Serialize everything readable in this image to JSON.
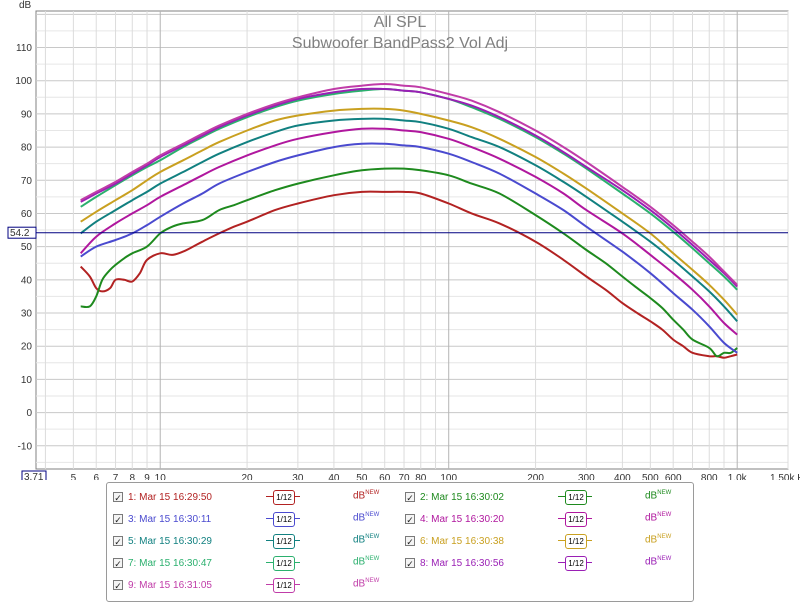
{
  "chart_data": {
    "type": "line",
    "title": "All SPL",
    "subtitle": "Subwoofer BandPass2 Vol Adj",
    "ylabel": "dB",
    "xlabel": "Hz",
    "x_scale": "log",
    "xlim": [
      3.71,
      1500
    ],
    "ylim": [
      -17,
      121
    ],
    "x_ticks": [
      5,
      6,
      7,
      8,
      9,
      10,
      20,
      30,
      40,
      50,
      60,
      70,
      80,
      100,
      200,
      300,
      400,
      500,
      600,
      800,
      1000,
      1500
    ],
    "x_tick_labels": [
      "5",
      "6",
      "7",
      "8",
      "9",
      "10",
      "20",
      "30",
      "40",
      "50",
      "60",
      "70",
      "80",
      "100",
      "200",
      "300",
      "400",
      "500",
      "600",
      "800",
      "1.0k",
      "1.50k Hz"
    ],
    "y_ticks": [
      -10,
      0,
      10,
      20,
      30,
      40,
      50,
      60,
      70,
      80,
      90,
      100,
      110
    ],
    "x_axis_start_label": "3.71",
    "cursor_y": 54.2,
    "cursor_label": "54.2",
    "grid": true,
    "series": [
      {
        "name": "1: Mar 15 16:29:50",
        "color": "#b22222",
        "x": [
          5.3,
          5.7,
          6,
          6.3,
          6.7,
          7,
          7.5,
          8,
          8.5,
          9,
          10,
          11,
          12,
          13,
          14,
          16,
          18,
          20,
          25,
          30,
          40,
          50,
          60,
          70,
          80,
          100,
          120,
          150,
          200,
          250,
          300,
          350,
          400,
          450,
          500,
          550,
          600,
          650,
          700,
          800,
          850,
          900,
          950,
          1000
        ],
        "y": [
          44,
          41,
          37.5,
          36.5,
          37.5,
          40,
          40,
          39.5,
          42,
          46,
          48,
          47.5,
          48.5,
          50,
          51.5,
          54,
          56,
          57.5,
          61,
          63,
          65.5,
          66.5,
          66.5,
          66.5,
          66,
          63,
          60,
          57,
          51.5,
          46,
          41,
          37,
          33,
          30,
          27.5,
          25,
          22,
          20,
          18,
          17,
          17,
          16.5,
          17,
          17.5
        ]
      },
      {
        "name": "2: Mar 15 16:30:02",
        "color": "#1e8a1e",
        "x": [
          5.3,
          5.7,
          6,
          6.3,
          6.7,
          7,
          7.5,
          8,
          9,
          10,
          11,
          12,
          14,
          16,
          18,
          20,
          25,
          30,
          40,
          50,
          60,
          70,
          80,
          100,
          120,
          150,
          200,
          250,
          300,
          350,
          400,
          450,
          500,
          550,
          600,
          650,
          700,
          800,
          850,
          900,
          950,
          1000
        ],
        "y": [
          32,
          32,
          35,
          40,
          43,
          44.5,
          46.5,
          48,
          50,
          54,
          56,
          57,
          58,
          61,
          62.5,
          64,
          67,
          69,
          71.5,
          73,
          73.5,
          73.5,
          73,
          71.5,
          69,
          66,
          59.5,
          54,
          49,
          45,
          41,
          37.5,
          34.5,
          31.5,
          28,
          25,
          22,
          19.5,
          17,
          18,
          18,
          19.5
        ]
      },
      {
        "name": "3: Mar 15 16:30:11",
        "color": "#4a4acf",
        "x": [
          5.3,
          6,
          7,
          8,
          9,
          10,
          12,
          14,
          16,
          20,
          25,
          30,
          40,
          50,
          60,
          70,
          80,
          100,
          120,
          150,
          200,
          250,
          300,
          400,
          500,
          600,
          700,
          800,
          900,
          1000
        ],
        "y": [
          47,
          50,
          52,
          54,
          56.5,
          59,
          63,
          66,
          69,
          72.5,
          75.5,
          77.5,
          80,
          81,
          81,
          80.5,
          80,
          78,
          75.5,
          72,
          66,
          61,
          56,
          48.5,
          42,
          36,
          31,
          26,
          21,
          18
        ]
      },
      {
        "name": "4: Mar 15 16:30:20",
        "color": "#b0179e",
        "x": [
          5.3,
          6,
          7,
          8,
          9,
          10,
          12,
          14,
          16,
          20,
          25,
          30,
          40,
          50,
          60,
          70,
          80,
          100,
          120,
          150,
          200,
          250,
          300,
          400,
          500,
          600,
          700,
          800,
          900,
          1000
        ],
        "y": [
          48,
          53,
          57,
          60,
          62.5,
          65,
          68.5,
          71.5,
          74,
          77.5,
          80.5,
          82.5,
          84.5,
          85.5,
          85.5,
          85,
          84.5,
          82.5,
          80,
          76.5,
          71,
          66,
          61,
          54,
          47.5,
          42,
          37,
          32,
          27,
          23.5
        ]
      },
      {
        "name": "5: Mar 15 16:30:29",
        "color": "#118080",
        "x": [
          5.3,
          6,
          7,
          8,
          9,
          10,
          12,
          14,
          16,
          20,
          25,
          30,
          40,
          50,
          60,
          70,
          80,
          100,
          120,
          150,
          200,
          250,
          300,
          400,
          500,
          600,
          700,
          800,
          900,
          1000
        ],
        "y": [
          54,
          57.5,
          61,
          64,
          66.5,
          69,
          72.5,
          75.5,
          78,
          81.5,
          84.5,
          86.5,
          88,
          88.5,
          88.5,
          88,
          87.5,
          85.5,
          83,
          80,
          74.5,
          69.5,
          65,
          57.5,
          51.5,
          46,
          41,
          36.5,
          32,
          27.5
        ]
      },
      {
        "name": "6: Mar 15 16:30:38",
        "color": "#c9a020",
        "x": [
          5.3,
          6,
          7,
          8,
          9,
          10,
          12,
          14,
          16,
          20,
          25,
          30,
          40,
          50,
          60,
          70,
          80,
          100,
          120,
          150,
          200,
          250,
          300,
          400,
          500,
          600,
          700,
          800,
          900,
          1000
        ],
        "y": [
          57.5,
          60.5,
          64,
          67,
          70,
          72.5,
          76,
          79,
          81.5,
          85,
          88,
          89.5,
          91,
          91.5,
          91.5,
          91,
          90,
          88,
          86,
          82.5,
          77,
          72,
          67.5,
          60,
          54,
          48,
          43,
          38.5,
          34,
          29.5
        ]
      },
      {
        "name": "7: Mar 15 16:30:47",
        "color": "#2bb06e",
        "x": [
          5.3,
          6,
          7,
          8,
          9,
          10,
          12,
          14,
          16,
          20,
          25,
          30,
          40,
          50,
          60,
          70,
          80,
          100,
          120,
          150,
          200,
          250,
          300,
          400,
          500,
          600,
          700,
          800,
          900,
          1000
        ],
        "y": [
          62,
          65,
          68.5,
          71.5,
          74,
          76,
          80,
          83,
          85.5,
          89,
          92,
          94,
          96,
          97,
          97.5,
          97,
          96.5,
          94.5,
          92,
          88.5,
          83,
          78,
          73.5,
          66,
          60,
          54.5,
          49.5,
          45,
          41,
          37
        ]
      },
      {
        "name": "8: Mar 15 16:30:56",
        "color": "#9a1fb5",
        "x": [
          5.3,
          6,
          7,
          8,
          9,
          10,
          12,
          14,
          16,
          20,
          25,
          30,
          40,
          50,
          60,
          70,
          80,
          100,
          120,
          150,
          200,
          250,
          300,
          400,
          500,
          600,
          700,
          800,
          900,
          1000
        ],
        "y": [
          63.5,
          66,
          69,
          72,
          74.5,
          77,
          80.5,
          83.5,
          86,
          89.5,
          92.5,
          94.5,
          96.5,
          97.5,
          97.5,
          97,
          96.5,
          94.5,
          92.5,
          89,
          83.5,
          78.5,
          74,
          67,
          61,
          55.5,
          50.5,
          46,
          42,
          38
        ]
      },
      {
        "name": "9: Mar 15 16:31:05",
        "color": "#c03ca8",
        "x": [
          5.3,
          6,
          7,
          8,
          9,
          10,
          12,
          14,
          16,
          20,
          25,
          30,
          40,
          50,
          60,
          70,
          80,
          100,
          120,
          150,
          200,
          250,
          300,
          400,
          500,
          600,
          700,
          800,
          900,
          1000
        ],
        "y": [
          64,
          66.5,
          69.5,
          72.5,
          75,
          77.5,
          81,
          84,
          86.5,
          90,
          93,
          95,
          97.5,
          98.5,
          99,
          98.5,
          98,
          96,
          94,
          90.5,
          85,
          80,
          75.5,
          68,
          62,
          56.5,
          51.5,
          47,
          42.5,
          38.5
        ]
      }
    ]
  },
  "legend": {
    "smoothing_label": "1/12",
    "unit_label": "dB",
    "unit_sup": "NEW",
    "check_glyph": "✓"
  }
}
